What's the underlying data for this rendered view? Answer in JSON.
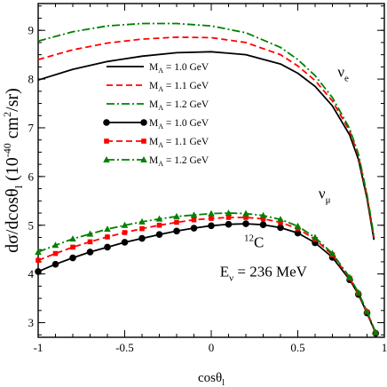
{
  "chart_data": {
    "type": "line",
    "xlabel": "cosθ",
    "xlabel_sub": "l",
    "ylabel": "dσ/dcosθ",
    "ylabel_sub": "l",
    "ylabel_units": "(10",
    "ylabel_exp": "-40",
    "ylabel_units2": "cm",
    "ylabel_exp2": "2",
    "ylabel_units3": "/sr)",
    "xlim": [
      -1,
      1
    ],
    "ylim": [
      2.7,
      9.55
    ],
    "x_ticks": [
      -1,
      -0.5,
      0,
      0.5,
      1
    ],
    "x_tick_labels": [
      "-1",
      "-0.5",
      "0",
      "0.5",
      "1"
    ],
    "y_ticks": [
      3,
      4,
      5,
      6,
      7,
      8,
      9
    ],
    "y_tick_labels": [
      "3",
      "4",
      "5",
      "6",
      "7",
      "8",
      "9"
    ],
    "grid": false,
    "legend_position": "top-left",
    "series": [
      {
        "name_prefix": "M",
        "name_sub": "A",
        "name_value": "= 1.0 GeV",
        "neutrino": "e",
        "color": "#000000",
        "dash": "solid",
        "marker": "none",
        "x": [
          -1.0,
          -0.8,
          -0.6,
          -0.4,
          -0.2,
          0.0,
          0.2,
          0.4,
          0.5,
          0.6,
          0.7,
          0.8,
          0.85,
          0.9,
          0.94
        ],
        "y": [
          7.98,
          8.2,
          8.36,
          8.47,
          8.54,
          8.56,
          8.5,
          8.31,
          8.12,
          7.85,
          7.45,
          6.85,
          6.35,
          5.55,
          4.7
        ]
      },
      {
        "name_prefix": "M",
        "name_sub": "A",
        "name_value": "= 1.1 GeV",
        "neutrino": "e",
        "color": "#ff0000",
        "dash": "dashed",
        "marker": "none",
        "x": [
          -1.0,
          -0.8,
          -0.6,
          -0.4,
          -0.2,
          0.0,
          0.2,
          0.4,
          0.5,
          0.6,
          0.7,
          0.8,
          0.85,
          0.9,
          0.94
        ],
        "y": [
          8.4,
          8.6,
          8.74,
          8.82,
          8.86,
          8.85,
          8.75,
          8.5,
          8.27,
          7.97,
          7.55,
          6.93,
          6.42,
          5.6,
          4.75
        ]
      },
      {
        "name_prefix": "M",
        "name_sub": "A",
        "name_value": "= 1.2 GeV",
        "neutrino": "e",
        "color": "#008000",
        "dash": "dashdot",
        "marker": "none",
        "x": [
          -1.0,
          -0.8,
          -0.6,
          -0.4,
          -0.2,
          0.0,
          0.2,
          0.4,
          0.5,
          0.6,
          0.7,
          0.8,
          0.85,
          0.9,
          0.94
        ],
        "y": [
          8.78,
          8.97,
          9.09,
          9.14,
          9.14,
          9.09,
          8.95,
          8.65,
          8.4,
          8.07,
          7.62,
          6.98,
          6.46,
          5.63,
          4.78
        ]
      },
      {
        "name_prefix": "M",
        "name_sub": "A",
        "name_value": "= 1.0 GeV",
        "neutrino": "μ",
        "color": "#000000",
        "dash": "solid",
        "marker": "circle",
        "x": [
          -1.0,
          -0.9,
          -0.8,
          -0.7,
          -0.6,
          -0.5,
          -0.4,
          -0.3,
          -0.2,
          -0.1,
          0.0,
          0.1,
          0.2,
          0.3,
          0.4,
          0.5,
          0.6,
          0.7,
          0.8,
          0.85,
          0.9,
          0.95
        ],
        "y": [
          4.05,
          4.2,
          4.33,
          4.45,
          4.55,
          4.65,
          4.73,
          4.81,
          4.88,
          4.94,
          4.99,
          5.02,
          5.03,
          5.01,
          4.95,
          4.84,
          4.64,
          4.34,
          3.88,
          3.58,
          3.2,
          2.78
        ]
      },
      {
        "name_prefix": "M",
        "name_sub": "A",
        "name_value": "= 1.1 GeV",
        "neutrino": "μ",
        "color": "#ff0000",
        "dash": "dashed",
        "marker": "square",
        "x": [
          -1.0,
          -0.9,
          -0.8,
          -0.7,
          -0.6,
          -0.5,
          -0.4,
          -0.3,
          -0.2,
          -0.1,
          0.0,
          0.1,
          0.2,
          0.3,
          0.4,
          0.5,
          0.6,
          0.7,
          0.8,
          0.85,
          0.9,
          0.95
        ],
        "y": [
          4.28,
          4.42,
          4.55,
          4.66,
          4.76,
          4.85,
          4.93,
          5.0,
          5.06,
          5.11,
          5.14,
          5.16,
          5.16,
          5.13,
          5.06,
          4.93,
          4.71,
          4.39,
          3.91,
          3.6,
          3.22,
          2.79
        ]
      },
      {
        "name_prefix": "M",
        "name_sub": "A",
        "name_value": "= 1.2 GeV",
        "neutrino": "μ",
        "color": "#008000",
        "dash": "dashdot",
        "marker": "triangle",
        "x": [
          -1.0,
          -0.9,
          -0.8,
          -0.7,
          -0.6,
          -0.5,
          -0.4,
          -0.3,
          -0.2,
          -0.1,
          0.0,
          0.1,
          0.2,
          0.3,
          0.4,
          0.5,
          0.6,
          0.7,
          0.8,
          0.85,
          0.9,
          0.95
        ],
        "y": [
          4.45,
          4.59,
          4.72,
          4.82,
          4.92,
          5.0,
          5.07,
          5.13,
          5.18,
          5.21,
          5.24,
          5.25,
          5.24,
          5.2,
          5.12,
          4.98,
          4.75,
          4.42,
          3.93,
          3.62,
          3.23,
          2.8
        ]
      }
    ],
    "annotations": [
      {
        "id": "nu-e",
        "text": "ν",
        "sub": "e",
        "x": 0.73,
        "y": 8.05
      },
      {
        "id": "nu-mu",
        "text": "ν",
        "sub": "μ",
        "x": 0.62,
        "y": 5.55
      },
      {
        "id": "nucleus",
        "sup": "12",
        "text": "C",
        "x": 0.19,
        "y": 4.55
      },
      {
        "id": "energy",
        "text": "E",
        "sub": "ν",
        "suffix": "= 236 MeV",
        "x": 0.05,
        "y": 3.95
      }
    ]
  }
}
